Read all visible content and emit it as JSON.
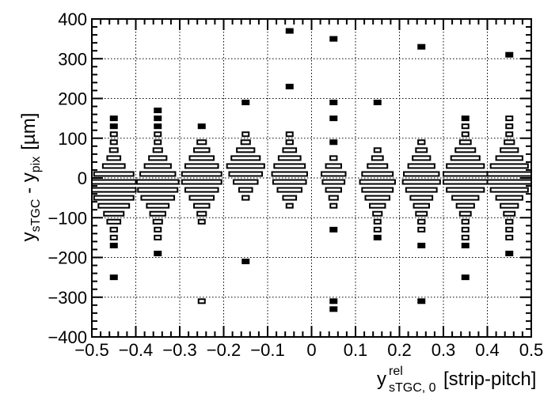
{
  "chart_data": {
    "type": "candle",
    "xlabel_main": "y",
    "xlabel_sup": "rel",
    "xlabel_sub": "sTGC, 0",
    "xlabel_unit": "[strip-pitch]",
    "ylabel_a": "y",
    "ylabel_a_sub": "sTGC",
    "ylabel_mid": " - ",
    "ylabel_b": "y",
    "ylabel_b_sub": "pix",
    "ylabel_unit": "[µm]",
    "xlim": [
      -0.5,
      0.5
    ],
    "ylim": [
      -400,
      400
    ],
    "grid": true,
    "x_ticks": [
      "-0.5",
      "-0.4",
      "-0.3",
      "-0.2",
      "-0.1",
      "0",
      "0.1",
      "0.2",
      "0.3",
      "0.4",
      "0.5"
    ],
    "y_ticks": [
      "-400",
      "-300",
      "-200",
      "-100",
      "0",
      "100",
      "200",
      "300",
      "400"
    ],
    "x_tick_values": [
      -0.5,
      -0.4,
      -0.3,
      -0.2,
      -0.1,
      0,
      0.1,
      0.2,
      0.3,
      0.4,
      0.5
    ],
    "y_tick_values": [
      -400,
      -300,
      -200,
      -100,
      0,
      100,
      200,
      300,
      400
    ],
    "bin_width": 0.1,
    "y_bin_width": 10,
    "x_bin_centers": [
      -0.45,
      -0.35,
      -0.25,
      -0.15,
      -0.05,
      0.05,
      0.15,
      0.25,
      0.35,
      0.45
    ],
    "columns": [
      {
        "x": -0.45,
        "bins": [
          [
            150,
            0.05
          ],
          [
            130,
            0.05
          ],
          [
            110,
            0.08
          ],
          [
            90,
            0.12
          ],
          [
            70,
            0.18
          ],
          [
            50,
            0.3
          ],
          [
            30,
            0.5
          ],
          [
            10,
            0.9
          ],
          [
            -10,
            1.0
          ],
          [
            -30,
            1.0
          ],
          [
            -50,
            0.9
          ],
          [
            -70,
            0.7
          ],
          [
            -90,
            0.45
          ],
          [
            -110,
            0.3
          ],
          [
            -130,
            0.15
          ],
          [
            -150,
            0.1
          ],
          [
            -170,
            0.06
          ],
          [
            -250,
            0.05
          ]
        ]
      },
      {
        "x": -0.35,
        "bins": [
          [
            170,
            0.06
          ],
          [
            150,
            0.05
          ],
          [
            130,
            0.05
          ],
          [
            110,
            0.08
          ],
          [
            90,
            0.1
          ],
          [
            70,
            0.2
          ],
          [
            50,
            0.4
          ],
          [
            30,
            0.6
          ],
          [
            10,
            0.8
          ],
          [
            -10,
            0.95
          ],
          [
            -30,
            0.9
          ],
          [
            -50,
            0.75
          ],
          [
            -70,
            0.5
          ],
          [
            -90,
            0.35
          ],
          [
            -110,
            0.2
          ],
          [
            -130,
            0.12
          ],
          [
            -150,
            0.08
          ],
          [
            -190,
            0.05
          ]
        ]
      },
      {
        "x": -0.25,
        "bins": [
          [
            130,
            0.05
          ],
          [
            90,
            0.2
          ],
          [
            70,
            0.35
          ],
          [
            50,
            0.55
          ],
          [
            30,
            0.75
          ],
          [
            10,
            0.9
          ],
          [
            -10,
            0.9
          ],
          [
            -30,
            0.75
          ],
          [
            -50,
            0.55
          ],
          [
            -70,
            0.35
          ],
          [
            -90,
            0.2
          ],
          [
            -110,
            0.08
          ],
          [
            -310,
            0.07
          ]
        ]
      },
      {
        "x": -0.15,
        "bins": [
          [
            190,
            0.05
          ],
          [
            110,
            0.08
          ],
          [
            90,
            0.2
          ],
          [
            70,
            0.4
          ],
          [
            50,
            0.65
          ],
          [
            30,
            0.85
          ],
          [
            10,
            0.75
          ],
          [
            -10,
            0.55
          ],
          [
            -30,
            0.3
          ],
          [
            -50,
            0.15
          ],
          [
            -210,
            0.05
          ]
        ]
      },
      {
        "x": -0.05,
        "bins": [
          [
            370,
            0.05
          ],
          [
            230,
            0.05
          ],
          [
            110,
            0.08
          ],
          [
            90,
            0.15
          ],
          [
            70,
            0.3
          ],
          [
            50,
            0.5
          ],
          [
            30,
            0.7
          ],
          [
            10,
            0.8
          ],
          [
            -10,
            0.75
          ],
          [
            -30,
            0.55
          ],
          [
            -50,
            0.3
          ],
          [
            -70,
            0.1
          ]
        ]
      },
      {
        "x": 0.05,
        "bins": [
          [
            350,
            0.05
          ],
          [
            190,
            0.05
          ],
          [
            150,
            0.05
          ],
          [
            90,
            0.05
          ],
          [
            50,
            0.15
          ],
          [
            30,
            0.35
          ],
          [
            10,
            0.55
          ],
          [
            -10,
            0.5
          ],
          [
            -30,
            0.35
          ],
          [
            -50,
            0.2
          ],
          [
            -70,
            0.08
          ],
          [
            -130,
            0.05
          ],
          [
            -310,
            0.05
          ],
          [
            -330,
            0.05
          ]
        ]
      },
      {
        "x": 0.15,
        "bins": [
          [
            190,
            0.05
          ],
          [
            70,
            0.1
          ],
          [
            50,
            0.25
          ],
          [
            30,
            0.45
          ],
          [
            10,
            0.7
          ],
          [
            -10,
            0.8
          ],
          [
            -30,
            0.7
          ],
          [
            -50,
            0.55
          ],
          [
            -70,
            0.35
          ],
          [
            -90,
            0.2
          ],
          [
            -110,
            0.12
          ],
          [
            -130,
            0.08
          ],
          [
            -150,
            0.05
          ]
        ]
      },
      {
        "x": 0.25,
        "bins": [
          [
            330,
            0.05
          ],
          [
            90,
            0.15
          ],
          [
            70,
            0.25
          ],
          [
            50,
            0.4
          ],
          [
            30,
            0.6
          ],
          [
            10,
            0.8
          ],
          [
            -10,
            0.85
          ],
          [
            -30,
            0.7
          ],
          [
            -50,
            0.5
          ],
          [
            -70,
            0.35
          ],
          [
            -90,
            0.25
          ],
          [
            -110,
            0.15
          ],
          [
            -130,
            0.1
          ],
          [
            -170,
            0.05
          ],
          [
            -310,
            0.05
          ]
        ]
      },
      {
        "x": 0.35,
        "bins": [
          [
            150,
            0.05
          ],
          [
            130,
            0.07
          ],
          [
            110,
            0.12
          ],
          [
            90,
            0.25
          ],
          [
            70,
            0.45
          ],
          [
            50,
            0.65
          ],
          [
            30,
            0.85
          ],
          [
            10,
            1.0
          ],
          [
            -10,
            1.0
          ],
          [
            -30,
            0.85
          ],
          [
            -50,
            0.6
          ],
          [
            -70,
            0.4
          ],
          [
            -90,
            0.25
          ],
          [
            -110,
            0.15
          ],
          [
            -130,
            0.1
          ],
          [
            -150,
            0.08
          ],
          [
            -170,
            0.06
          ],
          [
            -250,
            0.05
          ]
        ]
      },
      {
        "x": 0.45,
        "bins": [
          [
            310,
            0.05
          ],
          [
            150,
            0.08
          ],
          [
            130,
            0.08
          ],
          [
            110,
            0.12
          ],
          [
            90,
            0.22
          ],
          [
            70,
            0.4
          ],
          [
            50,
            0.6
          ],
          [
            30,
            0.85
          ],
          [
            10,
            1.0
          ],
          [
            -10,
            1.0
          ],
          [
            -30,
            0.85
          ],
          [
            -50,
            0.6
          ],
          [
            -70,
            0.4
          ],
          [
            -90,
            0.25
          ],
          [
            -110,
            0.15
          ],
          [
            -130,
            0.1
          ],
          [
            -150,
            0.08
          ],
          [
            -190,
            0.05
          ]
        ]
      }
    ]
  }
}
